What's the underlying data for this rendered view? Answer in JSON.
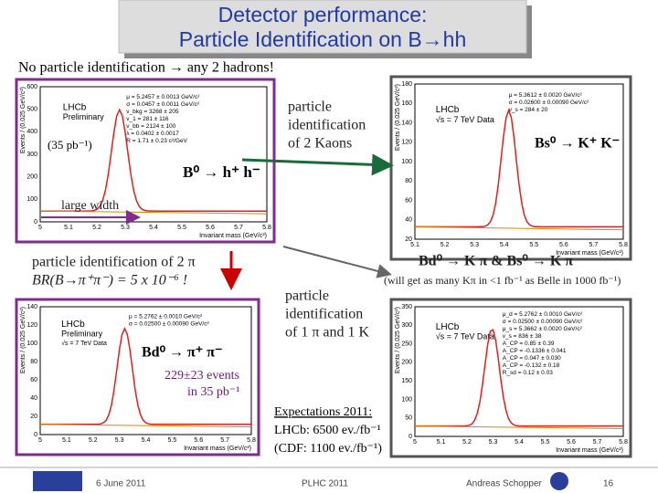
{
  "header": {
    "title_line1": "Detector performance:",
    "title_line2": "Particle Identification on B→hh"
  },
  "subtitle": "No particle identification → any 2 hadrons!",
  "labels": {
    "kaons": [
      "particle",
      "identification",
      "of 2 Kaons"
    ],
    "hh": "B⁰ → h⁺ h⁻",
    "large_width": "large width",
    "pions": "particle identification of 2 π",
    "br": "BR(B→π⁺π⁻) = 5 x 10⁻⁶ !",
    "kpi": "Bd⁰ → K π  &  Bs⁰ → K π",
    "kpi_note": "(will get as many Kπ in <1 fb⁻¹ as Belle in 1000 fb⁻¹)",
    "pik": [
      "particle",
      "identification",
      "of 1 π and 1 K"
    ],
    "pipi": "Bd⁰ → π⁺ π⁻",
    "events": "229±23 events",
    "lumi": "in 35 pb⁻¹",
    "kk": "Bs⁰ → K⁺ K⁻",
    "lumi1": "(35 pb⁻¹)",
    "expect": [
      "Expectations 2011:",
      "LHCb: 6500 ev./fb⁻¹",
      "(CDF: 1100 ev./fb⁻¹)"
    ]
  },
  "plots": [
    {
      "tag": "LHCb",
      "tag2": "Preliminary",
      "stats": [
        "μ = 5.2457 ± 0.0013 GeV/c²",
        "σ = 0.0457 ± 0.0011 GeV/c²",
        "ν_bkg = 3268 ± 205",
        "ν_1 = 281 ± 116",
        "ν_bb = 2124 ± 100",
        "λ = 0.0402 ± 0.0017",
        "R = 1.71 ± 0.23 c²/GeV"
      ],
      "yticks": [
        "0",
        "100",
        "200",
        "300",
        "400",
        "500",
        "600"
      ],
      "xticks": [
        "5",
        "5.1",
        "5.2",
        "5.3",
        "5.4",
        "5.5",
        "5.6",
        "5.7",
        "5.8"
      ],
      "xlabel": "Invariant mass (GeV/c²)",
      "ylabel": "Events / (0.025 GeV/c²)"
    },
    {
      "tag": "LHCb",
      "tag2": "√s = 7 TeV Data",
      "stats": [
        "μ = 5.3612 ± 0.0020 GeV/c²",
        "σ = 0.02600 ± 0.00090 GeV/c²",
        "ν_s = 284 ± 20"
      ],
      "yticks": [
        "20",
        "40",
        "60",
        "80",
        "100",
        "120",
        "140",
        "160",
        "180"
      ],
      "xticks": [
        "5.1",
        "5.2",
        "5.3",
        "5.4",
        "5.5",
        "5.6",
        "5.7",
        "5.8"
      ],
      "xlabel": "Invariant mass (GeV/c²)",
      "ylabel": "Events / (0.025 GeV/c²)"
    },
    {
      "tag": "LHCb",
      "tag2": "Preliminary",
      "tag3": "√s = 7 TeV Data",
      "stats": [
        "μ = 5.2762 ± 0.0010 GeV/c²",
        "σ = 0.02500 ± 0.00090 GeV/c²"
      ],
      "yticks": [
        "0",
        "20",
        "40",
        "60",
        "80",
        "100",
        "120",
        "140"
      ],
      "xticks": [
        "5",
        "5.1",
        "5.2",
        "5.3",
        "5.4",
        "5.5",
        "5.6",
        "5.7",
        "5.8"
      ],
      "xlabel": "Invariant mass (GeV/c²)",
      "ylabel": "Events / (0.025 GeV/c²)"
    },
    {
      "tag": "LHCb",
      "tag2": "√s = 7 TeV Data",
      "stats": [
        "μ_d = 5.2762 ± 0.0010 GeV/c²",
        "σ = 0.02500 ± 0.00090 GeV/c²",
        "μ_s = 5.3662 ± 0.0020 GeV/c²",
        "ν_s = 836 ± 38",
        "A_CP = 0.85 ± 0.39",
        "A_CP = -0.1336 ± 0.041",
        "A_CP = 0.047 ± 0.030",
        "A_CP = -0.132 ± 0.18",
        "R_sd = 0.12 ± 0.03"
      ],
      "yticks": [
        "0",
        "50",
        "100",
        "150",
        "200",
        "250",
        "300",
        "350"
      ],
      "xticks": [
        "5",
        "5.1",
        "5.2",
        "5.3",
        "5.4",
        "5.5",
        "5.6",
        "5.7",
        "5.8"
      ],
      "xlabel": "Invariant mass (GeV/c²)",
      "ylabel": "Events / (0.025 GeV/c²)"
    }
  ],
  "footer": {
    "date": "6 June 2011",
    "conf": "PLHC 2011",
    "author": "Andreas Schopper",
    "page": "16"
  }
}
